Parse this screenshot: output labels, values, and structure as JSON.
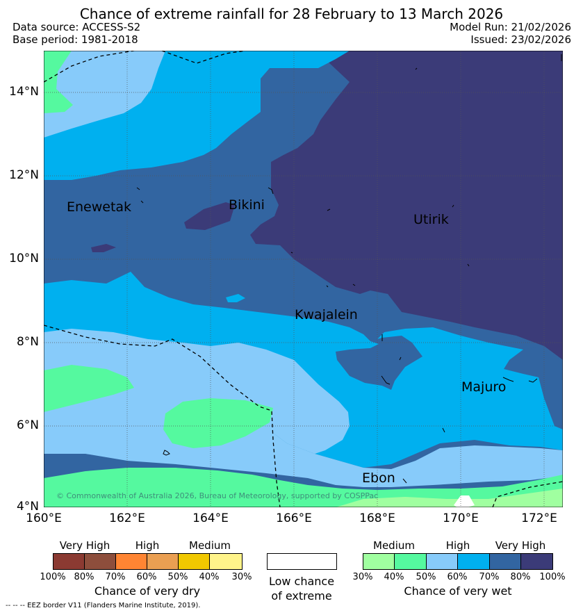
{
  "title": "Chance of extreme rainfall for 28 February to 13 March 2026",
  "data_source": "Data source: ACCESS-S2",
  "base_period": "Base period: 1981-2018",
  "model_run": "Model Run: 21/02/2026",
  "issued": "Issued: 23/02/2026",
  "lat_labels": [
    "14°N",
    "12°N",
    "10°N",
    "8°N",
    "6°N",
    "4°N"
  ],
  "lon_labels": [
    "160°E",
    "162°E",
    "164°E",
    "166°E",
    "168°E",
    "170°E",
    "172°E"
  ],
  "places": {
    "enewetak": "Enewetak",
    "bikini": "Bikini",
    "utirik": "Utirik",
    "kwajalein": "Kwajalein",
    "majuro": "Majuro",
    "ebon": "Ebon"
  },
  "copyright": "© Commonwealth of Australia 2026, Bureau of Meteorology, supported by COSPPac",
  "colors": {
    "dry_very_high_1": "#8b3a32",
    "dry_very_high_2": "#8d4e3c",
    "dry_high_1": "#ff8533",
    "dry_high_2": "#ea9f52",
    "dry_medium_1": "#f0c800",
    "dry_medium_2": "#fff48a",
    "wet_medium_1": "#a0ffa0",
    "wet_medium_2": "#55f99f",
    "wet_high_1": "#87cbfa",
    "wet_high_2": "#00b0ef",
    "wet_very_high_1": "#3265a1",
    "wet_very_high_2": "#3b3b78"
  },
  "legend": {
    "dry": {
      "levels": [
        "Very High",
        "High",
        "Medium"
      ],
      "ticks": [
        "100%",
        "80%",
        "70%",
        "60%",
        "50%",
        "40%",
        "30%"
      ],
      "caption": "Chance of very dry"
    },
    "low": {
      "line1": "Low chance",
      "line2": "of extreme"
    },
    "wet": {
      "levels": [
        "Medium",
        "High",
        "Very High"
      ],
      "ticks": [
        "30%",
        "40%",
        "50%",
        "60%",
        "70%",
        "80%",
        "100%"
      ],
      "caption": "Chance of very wet"
    }
  },
  "eez_note": "--  --  -- EEZ border V11 (Flanders Marine Institute, 2019)."
}
